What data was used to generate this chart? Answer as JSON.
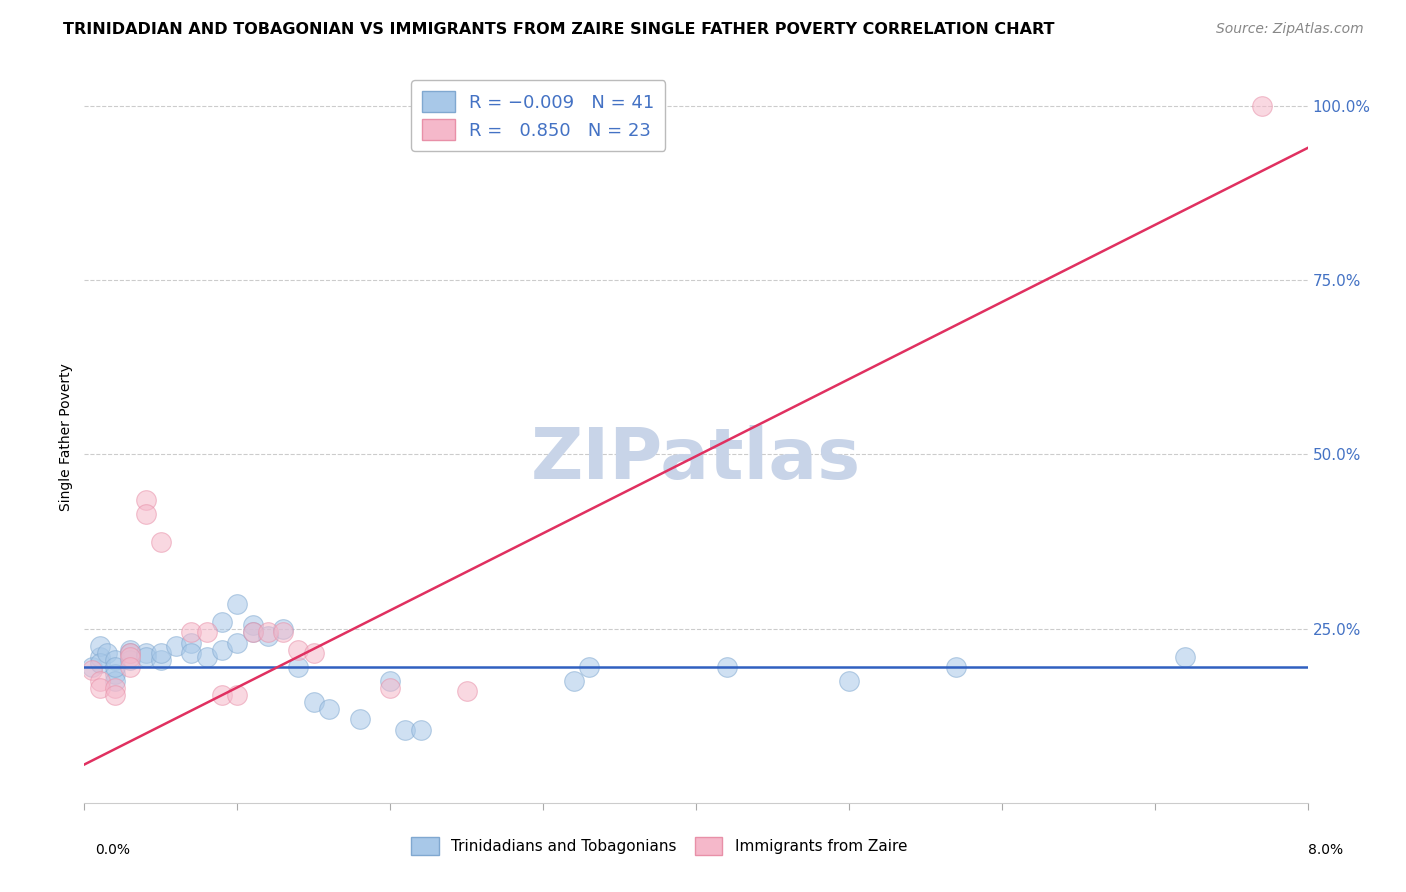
{
  "title": "TRINIDADIAN AND TOBAGONIAN VS IMMIGRANTS FROM ZAIRE SINGLE FATHER POVERTY CORRELATION CHART",
  "source": "Source: ZipAtlas.com",
  "ylabel": "Single Father Poverty",
  "xlim": [
    0.0,
    0.08
  ],
  "ylim": [
    0.0,
    1.05
  ],
  "y_ticks": [
    0.25,
    0.5,
    0.75,
    1.0
  ],
  "y_tick_labels": [
    "25.0%",
    "50.0%",
    "75.0%",
    "100.0%"
  ],
  "x_ticks": [
    0.0,
    0.01,
    0.02,
    0.03,
    0.04,
    0.05,
    0.06,
    0.07,
    0.08
  ],
  "watermark": "ZIPatlas",
  "blue_scatter": [
    [
      0.0005,
      0.195
    ],
    [
      0.001,
      0.21
    ],
    [
      0.001,
      0.225
    ],
    [
      0.001,
      0.2
    ],
    [
      0.0015,
      0.215
    ],
    [
      0.002,
      0.205
    ],
    [
      0.002,
      0.185
    ],
    [
      0.002,
      0.175
    ],
    [
      0.002,
      0.195
    ],
    [
      0.003,
      0.22
    ],
    [
      0.003,
      0.205
    ],
    [
      0.003,
      0.215
    ],
    [
      0.004,
      0.215
    ],
    [
      0.004,
      0.21
    ],
    [
      0.005,
      0.205
    ],
    [
      0.005,
      0.215
    ],
    [
      0.006,
      0.225
    ],
    [
      0.007,
      0.23
    ],
    [
      0.007,
      0.215
    ],
    [
      0.008,
      0.21
    ],
    [
      0.009,
      0.26
    ],
    [
      0.009,
      0.22
    ],
    [
      0.01,
      0.285
    ],
    [
      0.01,
      0.23
    ],
    [
      0.011,
      0.255
    ],
    [
      0.011,
      0.245
    ],
    [
      0.012,
      0.24
    ],
    [
      0.013,
      0.25
    ],
    [
      0.014,
      0.195
    ],
    [
      0.015,
      0.145
    ],
    [
      0.016,
      0.135
    ],
    [
      0.018,
      0.12
    ],
    [
      0.02,
      0.175
    ],
    [
      0.021,
      0.105
    ],
    [
      0.022,
      0.105
    ],
    [
      0.032,
      0.175
    ],
    [
      0.033,
      0.195
    ],
    [
      0.042,
      0.195
    ],
    [
      0.05,
      0.175
    ],
    [
      0.057,
      0.195
    ],
    [
      0.072,
      0.21
    ]
  ],
  "pink_scatter": [
    [
      0.0005,
      0.19
    ],
    [
      0.001,
      0.175
    ],
    [
      0.001,
      0.165
    ],
    [
      0.002,
      0.165
    ],
    [
      0.002,
      0.155
    ],
    [
      0.003,
      0.215
    ],
    [
      0.003,
      0.21
    ],
    [
      0.003,
      0.195
    ],
    [
      0.004,
      0.435
    ],
    [
      0.004,
      0.415
    ],
    [
      0.005,
      0.375
    ],
    [
      0.007,
      0.245
    ],
    [
      0.008,
      0.245
    ],
    [
      0.009,
      0.155
    ],
    [
      0.01,
      0.155
    ],
    [
      0.011,
      0.245
    ],
    [
      0.012,
      0.245
    ],
    [
      0.013,
      0.245
    ],
    [
      0.014,
      0.22
    ],
    [
      0.015,
      0.215
    ],
    [
      0.02,
      0.165
    ],
    [
      0.025,
      0.16
    ],
    [
      0.077,
      1.0
    ]
  ],
  "blue_line_y": 0.195,
  "pink_line_x0": 0.0,
  "pink_line_y0": 0.055,
  "pink_line_x1": 0.08,
  "pink_line_y1": 0.94,
  "scatter_size": 200,
  "scatter_alpha": 0.55,
  "blue_color": "#a8c8e8",
  "blue_edge": "#80a8d0",
  "pink_color": "#f5b8ca",
  "pink_edge": "#e890a8",
  "blue_line_color": "#3060c0",
  "pink_line_color": "#e03060",
  "title_fontsize": 11.5,
  "source_fontsize": 10,
  "axis_label_fontsize": 10,
  "legend_fontsize": 13,
  "tick_color": "#4472c4",
  "watermark_color": "#c8d4e8",
  "watermark_fontsize": 52
}
